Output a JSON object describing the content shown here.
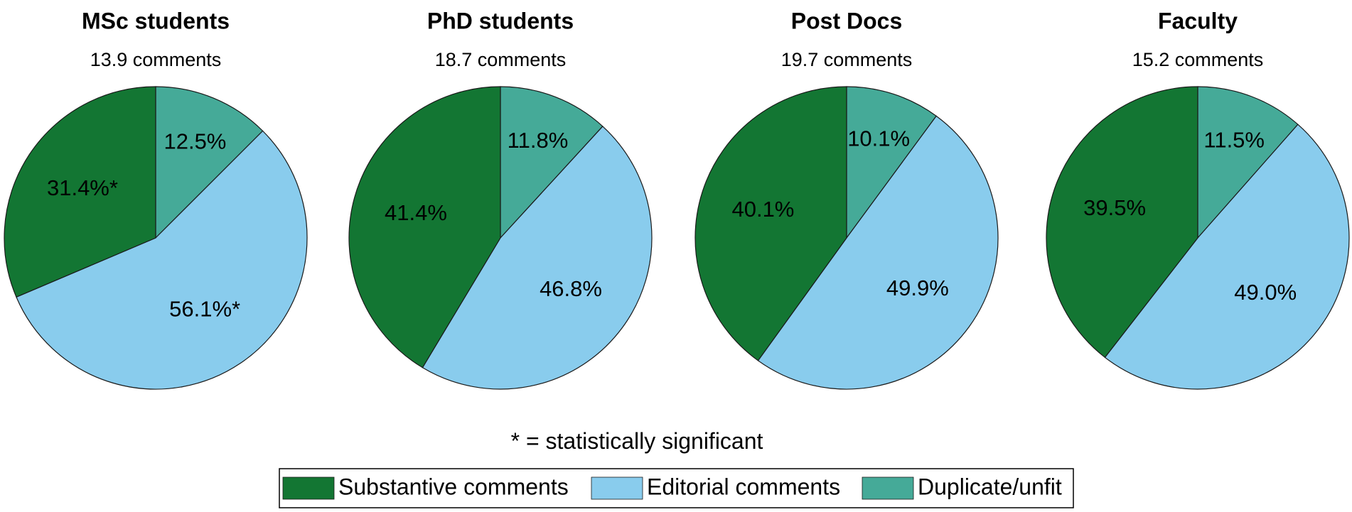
{
  "chart_data": [
    {
      "type": "pie",
      "title": "MSc students",
      "subtitle": "13.9 comments",
      "slices": [
        {
          "category": "Duplicate/unfit",
          "value": 12.5,
          "label": "12.5%"
        },
        {
          "category": "Editorial comments",
          "value": 56.1,
          "label": "56.1%*"
        },
        {
          "category": "Substantive comments",
          "value": 31.4,
          "label": "31.4%*"
        }
      ]
    },
    {
      "type": "pie",
      "title": "PhD students",
      "subtitle": "18.7 comments",
      "slices": [
        {
          "category": "Duplicate/unfit",
          "value": 11.8,
          "label": "11.8%"
        },
        {
          "category": "Editorial comments",
          "value": 46.8,
          "label": "46.8%"
        },
        {
          "category": "Substantive comments",
          "value": 41.4,
          "label": "41.4%"
        }
      ]
    },
    {
      "type": "pie",
      "title": "Post Docs",
      "subtitle": "19.7 comments",
      "slices": [
        {
          "category": "Duplicate/unfit",
          "value": 10.1,
          "label": "10.1%"
        },
        {
          "category": "Editorial comments",
          "value": 49.9,
          "label": "49.9%"
        },
        {
          "category": "Substantive comments",
          "value": 40.1,
          "label": "40.1%"
        }
      ]
    },
    {
      "type": "pie",
      "title": "Faculty",
      "subtitle": "15.2 comments",
      "slices": [
        {
          "category": "Duplicate/unfit",
          "value": 11.5,
          "label": "11.5%"
        },
        {
          "category": "Editorial comments",
          "value": 49.0,
          "label": "49.0%"
        },
        {
          "category": "Substantive comments",
          "value": 39.5,
          "label": "39.5%"
        }
      ]
    }
  ],
  "note": "* = statistically significant",
  "legend": {
    "placement": "bottom-center",
    "items": [
      {
        "label": "Substantive comments",
        "color": "#137633"
      },
      {
        "label": "Editorial comments",
        "color": "#89cced"
      },
      {
        "label": "Duplicate/unfit",
        "color": "#45aa98"
      }
    ]
  },
  "colors": {
    "Substantive comments": "#137633",
    "Editorial comments": "#89cced",
    "Duplicate/unfit": "#45aa98"
  }
}
